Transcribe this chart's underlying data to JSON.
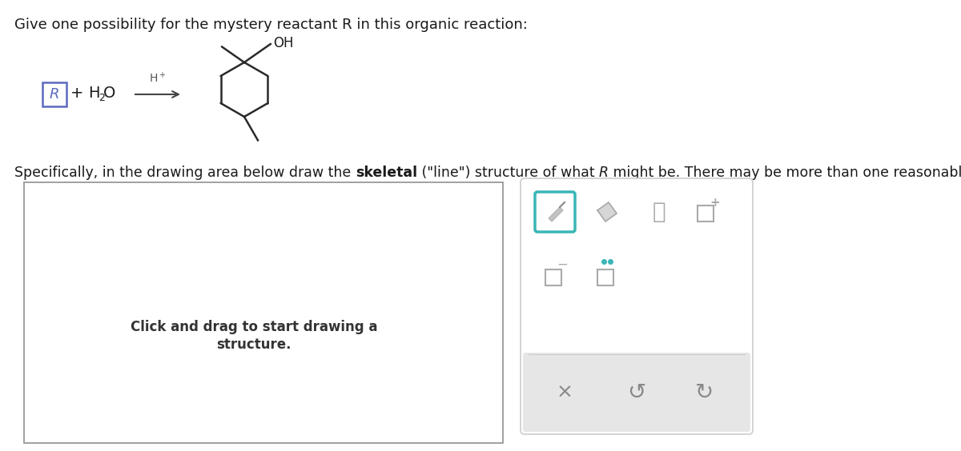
{
  "title_text": "Give one possibility for the mystery reactant R in this organic reaction:",
  "click_text_line1": "Click and drag to start drawing a",
  "click_text_line2": "structure.",
  "bg_color": "#ffffff",
  "teal_color": "#3ab5b5",
  "icon_color": "#999999",
  "R_box_color": "#5b6abf",
  "arrow_color": "#444444",
  "mol_color": "#2a2a2a",
  "toolbar_border": "#cccccc",
  "toolbar_bottom_bg": "#e6e6e6",
  "draw_box_border": "#999999"
}
